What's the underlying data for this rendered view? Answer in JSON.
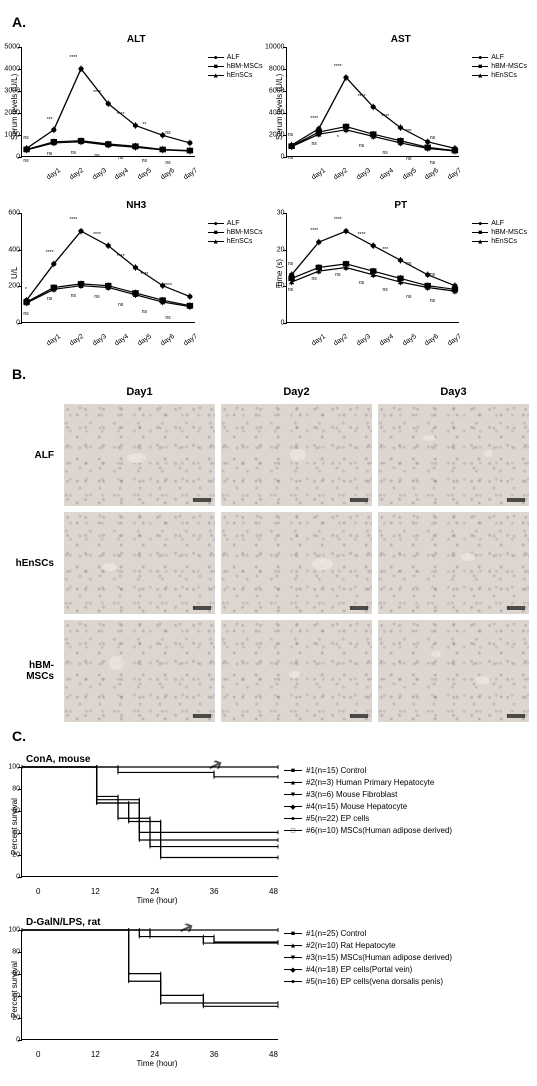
{
  "panelA": {
    "label": "A.",
    "charts": [
      {
        "title": "ALT",
        "ylabel": "Serum levels (U/L)",
        "ylim": [
          0,
          5000
        ],
        "ytick_step": 1000,
        "x": [
          "day1",
          "day2",
          "day3",
          "day4",
          "day5",
          "day6",
          "day7"
        ],
        "series": {
          "ALF": {
            "y": [
              350,
              1200,
              4000,
              2400,
              1400,
              950,
              600
            ],
            "marker": "circle"
          },
          "hBM-MSCs": {
            "y": [
              300,
              650,
              700,
              550,
              450,
              300,
              250
            ],
            "marker": "square"
          },
          "hEnSCs": {
            "y": [
              280,
              600,
              650,
              500,
              400,
              280,
              230
            ],
            "marker": "triangle"
          }
        },
        "sig": {
          "ALF": [
            "ns",
            "***",
            "****",
            "****",
            "****",
            "**",
            "ns"
          ],
          "hBM-MSCs": [
            "ns",
            "ns",
            "ns",
            "ns",
            "ns",
            "ns",
            "ns"
          ]
        },
        "legend_order": [
          "ALF",
          "hBM-MSCs",
          "hEnSCs"
        ],
        "color": "#000000"
      },
      {
        "title": "AST",
        "ylabel": "Serum levels (U/L)",
        "ylim": [
          0,
          10000
        ],
        "ytick_step": 2000,
        "x": [
          "day1",
          "day2",
          "day3",
          "day4",
          "day5",
          "day6",
          "day7"
        ],
        "series": {
          "ALF": {
            "y": [
              1000,
              2500,
              7200,
              4500,
              2600,
              1300,
              700
            ],
            "marker": "circle"
          },
          "hBM-MSCs": {
            "y": [
              900,
              2200,
              2700,
              2000,
              1400,
              800,
              500
            ],
            "marker": "square"
          },
          "hEnSCs": {
            "y": [
              850,
              2000,
              2400,
              1800,
              1200,
              700,
              450
            ],
            "marker": "triangle"
          }
        },
        "sig": {
          "ALF": [
            "ns",
            "****",
            "****",
            "****",
            "****",
            "***",
            "ns"
          ],
          "hBM-MSCs": [
            "ns",
            "ns",
            "*",
            "ns",
            "ns",
            "ns",
            "ns"
          ]
        },
        "legend_order": [
          "ALF",
          "hBM-MSCs",
          "hEnSCs"
        ],
        "color": "#000000"
      },
      {
        "title": "NH3",
        "ylabel": "U/L",
        "ylim": [
          0,
          600
        ],
        "ytick_step": 200,
        "x": [
          "day1",
          "day2",
          "day3",
          "day4",
          "day5",
          "day6",
          "day7"
        ],
        "series": {
          "ALF": {
            "y": [
              120,
              320,
              500,
              420,
              300,
              200,
              140
            ],
            "marker": "circle"
          },
          "hBM-MSCs": {
            "y": [
              110,
              190,
              210,
              200,
              160,
              120,
              90
            ],
            "marker": "square"
          },
          "hEnSCs": {
            "y": [
              105,
              180,
              200,
              190,
              150,
              110,
              85
            ],
            "marker": "triangle"
          }
        },
        "sig": {
          "ALF": [
            "*",
            "****",
            "****",
            "****",
            "****",
            "****",
            "****"
          ],
          "hBM-MSCs": [
            "ns",
            "ns",
            "ns",
            "ns",
            "ns",
            "ns",
            "ns"
          ]
        },
        "legend_order": [
          "ALF",
          "hBM-MSCs",
          "hEnSCs"
        ],
        "color": "#000000"
      },
      {
        "title": "PT",
        "ylabel": "Time (s)",
        "ylim": [
          0,
          30
        ],
        "ytick_step": 10,
        "x": [
          "day1",
          "day2",
          "day3",
          "day4",
          "day5",
          "day6",
          "day7"
        ],
        "series": {
          "ALF": {
            "y": [
              13,
              22,
              25,
              21,
              17,
              13,
              10
            ],
            "marker": "circle"
          },
          "hBM-MSCs": {
            "y": [
              12,
              15,
              16,
              14,
              12,
              10,
              9
            ],
            "marker": "square"
          },
          "hEnSCs": {
            "y": [
              11,
              14,
              15,
              13,
              11,
              9.5,
              8.5
            ],
            "marker": "triangle"
          }
        },
        "sig": {
          "ALF": [
            "ns",
            "****",
            "****",
            "****",
            "***",
            "ns",
            "ns"
          ],
          "hBM-MSCs": [
            "ns",
            "ns",
            "ns",
            "ns",
            "ns",
            "ns",
            "ns"
          ]
        },
        "legend_order": [
          "ALF",
          "hBM-MSCs",
          "hEnSCs"
        ],
        "color": "#000000"
      }
    ]
  },
  "panelB": {
    "label": "B.",
    "cols": [
      "Day1",
      "Day2",
      "Day3"
    ],
    "rows": [
      "ALF",
      "hEnSCs",
      "hBM-MSCs"
    ],
    "bg": "#dcd6cf",
    "blotches": [
      [
        {
          "l": 42,
          "t": 48,
          "w": 12,
          "h": 10
        }
      ],
      [
        {
          "l": 46,
          "t": 44,
          "w": 10,
          "h": 12
        }
      ],
      [
        {
          "l": 30,
          "t": 30,
          "w": 8,
          "h": 6
        },
        {
          "l": 70,
          "t": 45,
          "w": 6,
          "h": 7
        }
      ],
      [
        {
          "l": 25,
          "t": 50,
          "w": 10,
          "h": 8
        }
      ],
      [
        {
          "l": 60,
          "t": 45,
          "w": 14,
          "h": 12
        }
      ],
      [
        {
          "l": 55,
          "t": 40,
          "w": 9,
          "h": 8
        }
      ],
      [
        {
          "l": 30,
          "t": 35,
          "w": 10,
          "h": 14
        }
      ],
      [
        {
          "l": 45,
          "t": 50,
          "w": 8,
          "h": 7
        }
      ],
      [
        {
          "l": 35,
          "t": 30,
          "w": 7,
          "h": 6
        },
        {
          "l": 65,
          "t": 55,
          "w": 9,
          "h": 7
        }
      ]
    ]
  },
  "panelC": {
    "label": "C.",
    "plots": [
      {
        "title": "ConA, mouse",
        "xlabel": "Time (hour)",
        "xlim": [
          0,
          48
        ],
        "xticks": [
          0,
          12,
          24,
          36,
          48
        ],
        "ylim": [
          0,
          100
        ],
        "ytick_step": 20,
        "ylabel": "Percent survival",
        "arrow_at_x": 40,
        "series": [
          {
            "label": "#1(n=15)   Control",
            "steps": [
              [
                0,
                100
              ],
              [
                48,
                100
              ]
            ],
            "marker": "square"
          },
          {
            "label": "#2(n=3)     Human Primary Hepatocyte",
            "steps": [
              [
                0,
                100
              ],
              [
                14,
                100
              ],
              [
                14,
                67
              ],
              [
                22,
                67
              ],
              [
                22,
                33
              ],
              [
                48,
                33
              ]
            ],
            "marker": "triangle-up"
          },
          {
            "label": "#3(n=6)     Mouse Fibroblast",
            "steps": [
              [
                0,
                100
              ],
              [
                14,
                100
              ],
              [
                14,
                67
              ],
              [
                20,
                67
              ],
              [
                20,
                50
              ],
              [
                26,
                50
              ],
              [
                26,
                17
              ],
              [
                48,
                17
              ]
            ],
            "marker": "triangle-down"
          },
          {
            "label": "#4(n=15)   Mouse Hepatocyte",
            "steps": [
              [
                0,
                100
              ],
              [
                14,
                100
              ],
              [
                14,
                73
              ],
              [
                18,
                73
              ],
              [
                18,
                53
              ],
              [
                24,
                53
              ],
              [
                24,
                27
              ],
              [
                48,
                27
              ]
            ],
            "marker": "diamond"
          },
          {
            "label": "#5(n=22)   EP cells",
            "steps": [
              [
                0,
                100
              ],
              [
                18,
                100
              ],
              [
                18,
                95
              ],
              [
                36,
                95
              ],
              [
                36,
                91
              ],
              [
                48,
                91
              ]
            ],
            "marker": "circle"
          },
          {
            "label": "#6(n=10)   MSCs(Human adipose derived)",
            "steps": [
              [
                0,
                100
              ],
              [
                14,
                100
              ],
              [
                14,
                70
              ],
              [
                22,
                70
              ],
              [
                22,
                40
              ],
              [
                48,
                40
              ]
            ],
            "marker": "square-open"
          }
        ]
      },
      {
        "title": "D-GalN/LPS, rat",
        "xlabel": "Time (hour)",
        "xlim": [
          0,
          48
        ],
        "xticks": [
          0,
          12,
          24,
          36,
          48
        ],
        "ylim": [
          0,
          100
        ],
        "ytick_step": 20,
        "ylabel": "Percent survival",
        "arrow_at_x": 34,
        "series": [
          {
            "label": "#1(n=25)   Control",
            "steps": [
              [
                0,
                100
              ],
              [
                48,
                100
              ]
            ],
            "marker": "square"
          },
          {
            "label": "#2(n=10)   Rat Hepatocyte",
            "steps": [
              [
                0,
                100
              ],
              [
                20,
                100
              ],
              [
                20,
                60
              ],
              [
                26,
                60
              ],
              [
                26,
                40
              ],
              [
                34,
                40
              ],
              [
                34,
                30
              ],
              [
                48,
                30
              ]
            ],
            "marker": "triangle-up"
          },
          {
            "label": "#3(n=15)   MSCs(Human adipose derived)",
            "steps": [
              [
                0,
                100
              ],
              [
                20,
                100
              ],
              [
                20,
                53
              ],
              [
                26,
                53
              ],
              [
                26,
                33
              ],
              [
                48,
                33
              ]
            ],
            "marker": "triangle-down"
          },
          {
            "label": "#4(n=18)   EP cells(Portal vein)",
            "steps": [
              [
                0,
                100
              ],
              [
                24,
                100
              ],
              [
                24,
                94
              ],
              [
                36,
                94
              ],
              [
                36,
                89
              ],
              [
                48,
                89
              ]
            ],
            "marker": "diamond"
          },
          {
            "label": "#5(n=16)   EP cells(vena dorsalis penis)",
            "steps": [
              [
                0,
                100
              ],
              [
                22,
                100
              ],
              [
                22,
                94
              ],
              [
                34,
                94
              ],
              [
                34,
                88
              ],
              [
                48,
                88
              ]
            ],
            "marker": "circle"
          }
        ]
      }
    ]
  },
  "colors": {
    "line": "#000000",
    "bg": "#ffffff"
  }
}
